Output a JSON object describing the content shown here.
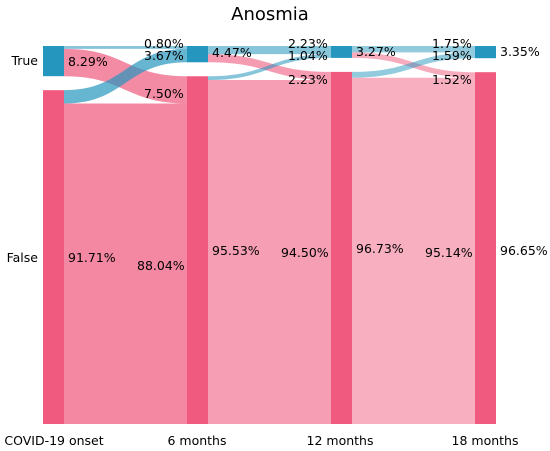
{
  "chart_data": {
    "type": "sankey",
    "title": "Anosmia",
    "categories": [
      "COVID-19 onset",
      "6 months",
      "12 months",
      "18 months"
    ],
    "states": [
      "True",
      "False"
    ],
    "colors": {
      "True": "#2596be",
      "False": "#f05a7e"
    },
    "nodes": [
      {
        "True": "8.29%",
        "False": "91.71%"
      },
      {
        "True": "4.47%",
        "False": "95.53%"
      },
      {
        "True": "3.27%",
        "False": "96.73%"
      },
      {
        "True": "3.35%",
        "False": "96.65%"
      }
    ],
    "flows": [
      {
        "True->True": "0.80%",
        "True->False": "7.50%",
        "False->True": "3.67%",
        "False->False": "88.04%"
      },
      {
        "True->True": "2.23%",
        "True->False": "2.23%",
        "False->True": "1.04%",
        "False->False": "94.50%"
      },
      {
        "True->True": "1.75%",
        "True->False": "1.52%",
        "False->True": "1.59%",
        "False->False": "95.14%"
      }
    ],
    "flow_values": [
      {
        "True->True": 0.8,
        "True->False": 7.5,
        "False->True": 3.67,
        "False->False": 88.04
      },
      {
        "True->True": 2.23,
        "True->False": 2.23,
        "False->True": 1.04,
        "False->False": 94.5
      },
      {
        "True->True": 1.75,
        "True->False": 1.52,
        "False->True": 1.59,
        "False->False": 95.14
      }
    ],
    "node_values": [
      {
        "True": 8.29,
        "False": 91.71
      },
      {
        "True": 4.47,
        "False": 95.53
      },
      {
        "True": 3.27,
        "False": 96.73
      },
      {
        "True": 3.35,
        "False": 96.65
      }
    ]
  }
}
